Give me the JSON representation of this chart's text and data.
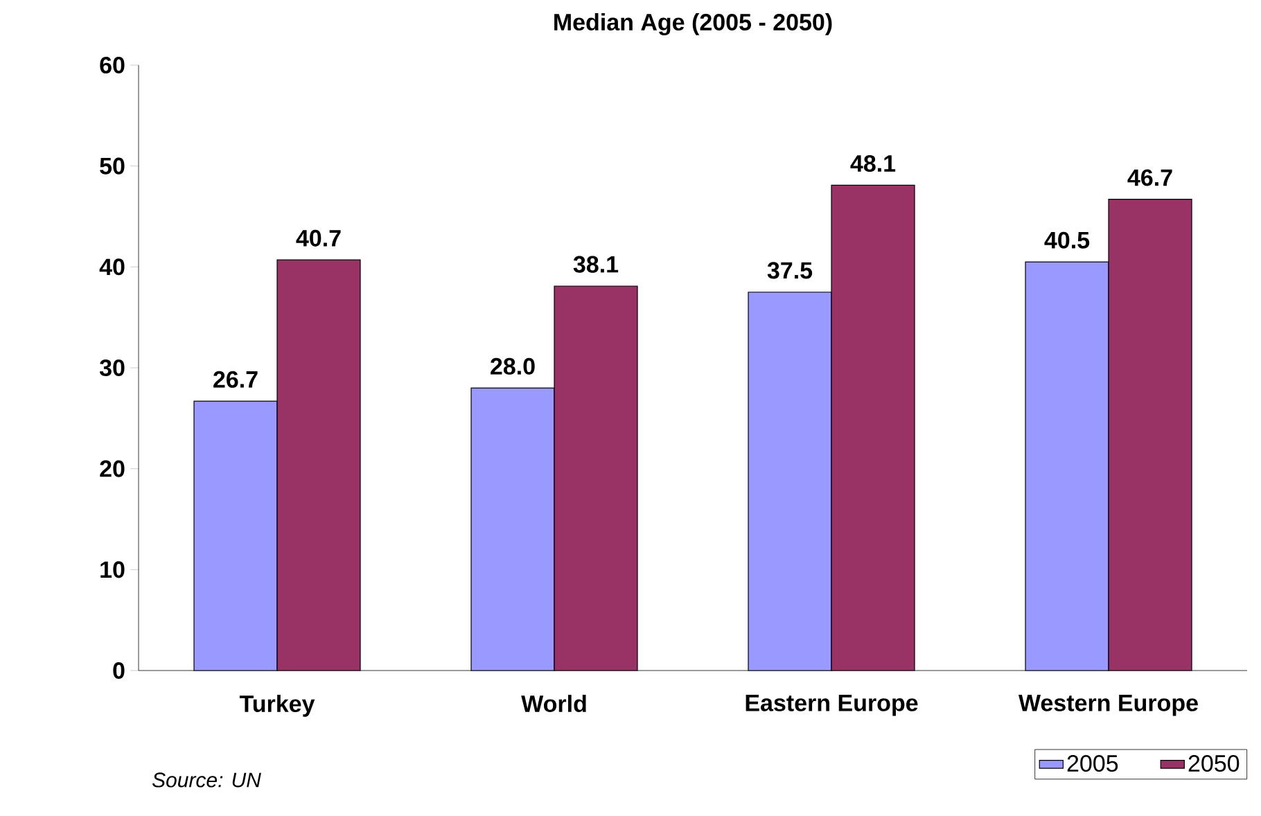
{
  "chart_data": {
    "type": "bar",
    "title": "Median Age (2005 - 2050)",
    "categories": [
      "Turkey",
      "World",
      "Eastern Europe",
      "Western Europe"
    ],
    "series": [
      {
        "name": "2005",
        "color": "#9999ff",
        "values": [
          26.7,
          28.0,
          37.5,
          40.5
        ],
        "value_labels": [
          "26.7",
          "28.0",
          "37.5",
          "40.5"
        ]
      },
      {
        "name": "2050",
        "color": "#993366",
        "values": [
          40.7,
          38.1,
          48.1,
          46.7
        ],
        "value_labels": [
          "40.7",
          "38.1",
          "48.1",
          "46.7"
        ]
      }
    ],
    "ylim": [
      0,
      60
    ],
    "yticks": [
      0,
      10,
      20,
      30,
      40,
      50,
      60
    ],
    "grid": false,
    "legend": "bottom right",
    "annotations": [
      "Source: UN"
    ]
  }
}
